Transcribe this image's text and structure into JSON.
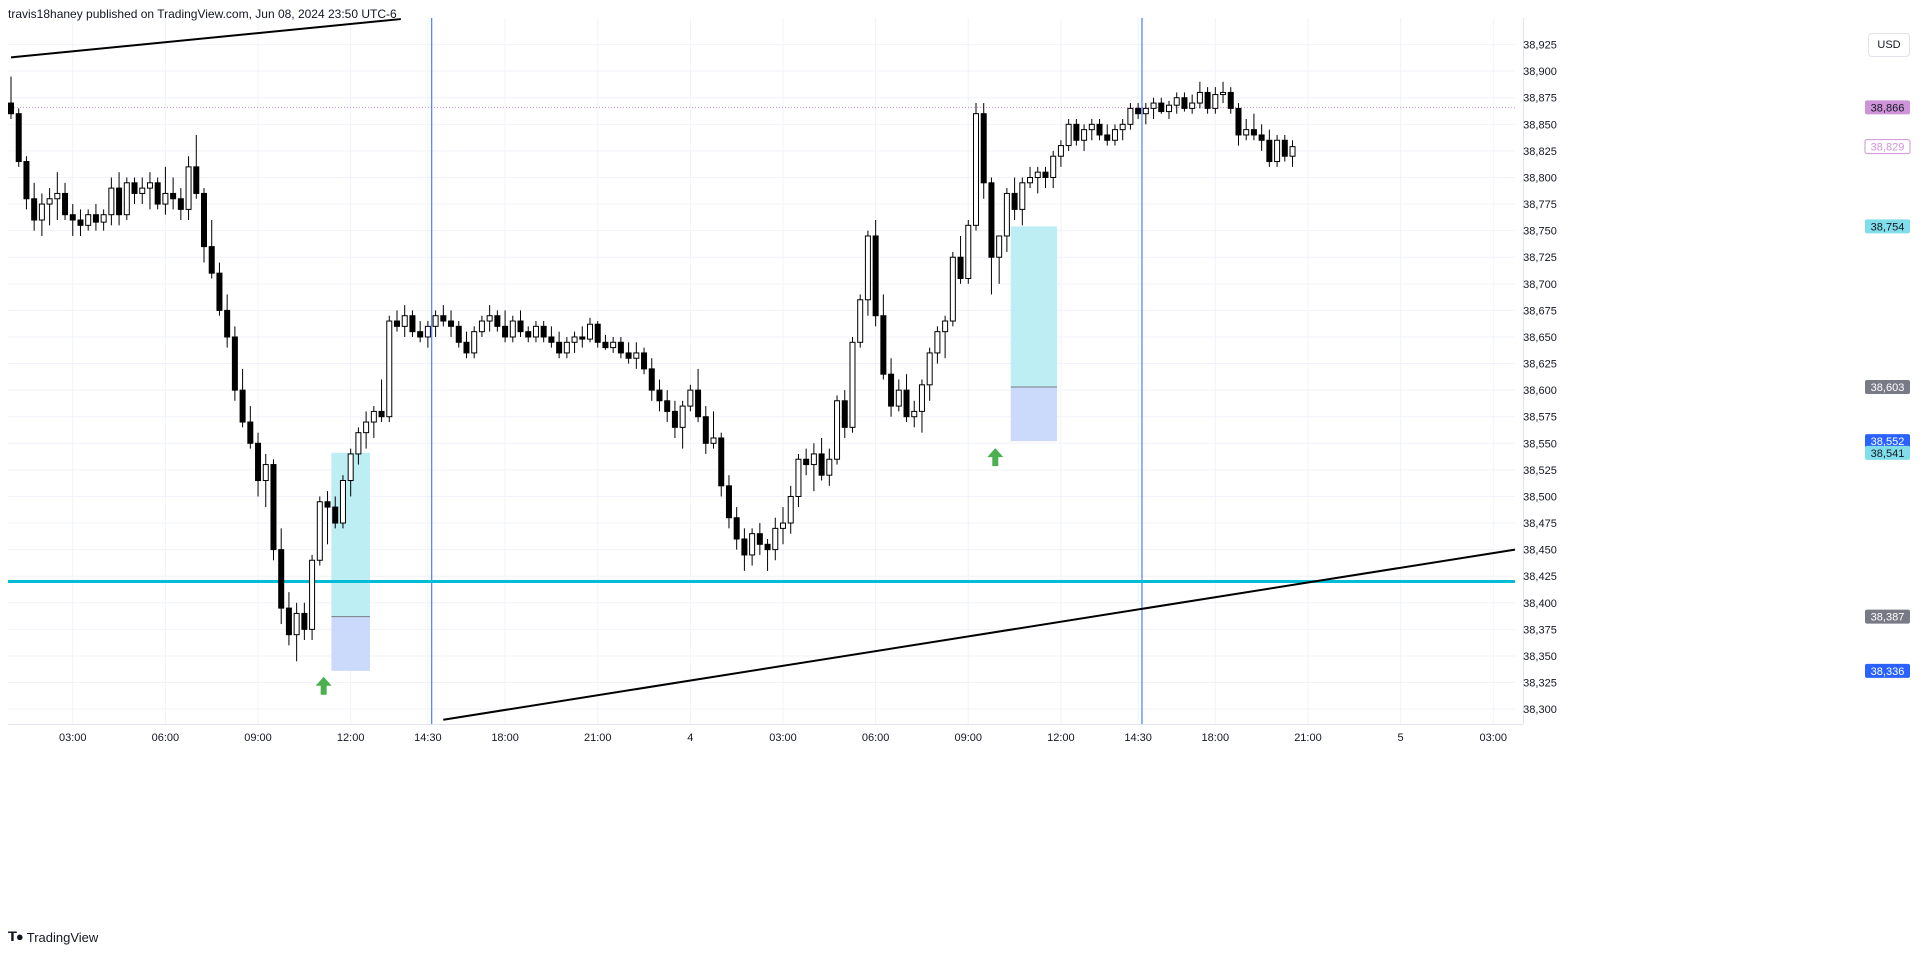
{
  "header": {
    "publish_text": "travis18haney published on TradingView.com, Jun 08, 2024 23:50 UTC-6"
  },
  "footer": {
    "brand": "TradingView",
    "logo_icon": "tradingview-logo-icon"
  },
  "price_scale": {
    "currency": "USD"
  },
  "colors": {
    "up_body": "#ffffff",
    "down_body": "#000000",
    "wick": "#000000",
    "vline": "#2962ff",
    "hline": "#00bcd4",
    "trendline": "#000000",
    "profit_zone": "#b2ebf2",
    "stop_zone": "#c5d6fb",
    "arrow": "#4caf50"
  },
  "chart_data": {
    "type": "candlestick",
    "y_ticks": [
      "38,925",
      "38,900",
      "38,875",
      "38,850",
      "38,825",
      "38,800",
      "38,775",
      "38,750",
      "38,725",
      "38,700",
      "38,675",
      "38,650",
      "38,625",
      "38,600",
      "38,575",
      "38,550",
      "38,525",
      "38,500",
      "38,475",
      "38,450",
      "38,425",
      "38,400",
      "38,375",
      "38,350",
      "38,325",
      "38,300"
    ],
    "ylim": [
      38286,
      38950
    ],
    "x_ticks": [
      {
        "label": "03:00",
        "i": 8
      },
      {
        "label": "06:00",
        "i": 20
      },
      {
        "label": "09:00",
        "i": 32
      },
      {
        "label": "12:00",
        "i": 44
      },
      {
        "label": "14:30",
        "i": 54
      },
      {
        "label": "18:00",
        "i": 64
      },
      {
        "label": "21:00",
        "i": 76
      },
      {
        "label": "4",
        "i": 88
      },
      {
        "label": "03:00",
        "i": 100
      },
      {
        "label": "06:00",
        "i": 112
      },
      {
        "label": "09:00",
        "i": 124
      },
      {
        "label": "12:00",
        "i": 136
      },
      {
        "label": "14:30",
        "i": 146
      },
      {
        "label": "18:00",
        "i": 156
      },
      {
        "label": "21:00",
        "i": 168
      },
      {
        "label": "5",
        "i": 180
      },
      {
        "label": "03:00",
        "i": 192
      }
    ],
    "price_labels": [
      {
        "value": 38866,
        "text": "38,866",
        "bg": "#ce93d8",
        "fg": "#131722"
      },
      {
        "value": 38829,
        "text": "38,829",
        "bg": "#ffffff",
        "fg": "#ce93d8",
        "border": "#ce93d8"
      },
      {
        "value": 38754,
        "text": "38,754",
        "bg": "#80deea",
        "fg": "#131722"
      },
      {
        "value": 38603,
        "text": "38,603",
        "bg": "#787b86",
        "fg": "#ffffff"
      },
      {
        "value": 38552,
        "text": "38,552",
        "bg": "#2962ff",
        "fg": "#ffffff"
      },
      {
        "value": 38541,
        "text": "38,541",
        "bg": "#80deea",
        "fg": "#131722"
      },
      {
        "value": 38387,
        "text": "38,387",
        "bg": "#787b86",
        "fg": "#ffffff"
      },
      {
        "value": 38336,
        "text": "38,336",
        "bg": "#2962ff",
        "fg": "#ffffff"
      }
    ],
    "dotted_line": 38866,
    "horizontal_line": 38420,
    "vertical_lines_i": [
      54.5,
      146.5
    ],
    "trendlines": [
      {
        "i1": 0,
        "p1": 38913,
        "i2": 50.5,
        "p2": 38949
      },
      {
        "i1": 56,
        "p1": 38290,
        "i2": 198,
        "p2": 38450
      }
    ],
    "positions": [
      {
        "i1": 41.5,
        "i2": 46.5,
        "entry": 38387,
        "target": 38541,
        "stop": 38336
      },
      {
        "i1": 129.5,
        "i2": 135.5,
        "entry": 38603,
        "target": 38754,
        "stop": 38552
      }
    ],
    "arrows_i": [
      {
        "i": 40.5,
        "price": 38322
      },
      {
        "i": 127.5,
        "price": 38537
      }
    ],
    "candles": [
      [
        38870,
        38895,
        38855,
        38860
      ],
      [
        38860,
        38865,
        38810,
        38815
      ],
      [
        38815,
        38820,
        38770,
        38780
      ],
      [
        38780,
        38795,
        38750,
        38760
      ],
      [
        38760,
        38785,
        38745,
        38775
      ],
      [
        38775,
        38790,
        38755,
        38780
      ],
      [
        38780,
        38805,
        38760,
        38785
      ],
      [
        38785,
        38795,
        38760,
        38765
      ],
      [
        38765,
        38775,
        38745,
        38760
      ],
      [
        38760,
        38770,
        38745,
        38755
      ],
      [
        38755,
        38770,
        38750,
        38765
      ],
      [
        38765,
        38775,
        38750,
        38758
      ],
      [
        38758,
        38770,
        38750,
        38765
      ],
      [
        38765,
        38800,
        38755,
        38790
      ],
      [
        38790,
        38805,
        38755,
        38765
      ],
      [
        38765,
        38800,
        38760,
        38795
      ],
      [
        38795,
        38800,
        38775,
        38785
      ],
      [
        38785,
        38800,
        38775,
        38790
      ],
      [
        38790,
        38805,
        38770,
        38795
      ],
      [
        38795,
        38800,
        38770,
        38775
      ],
      [
        38775,
        38810,
        38765,
        38785
      ],
      [
        38785,
        38800,
        38770,
        38780
      ],
      [
        38780,
        38790,
        38760,
        38770
      ],
      [
        38770,
        38820,
        38760,
        38810
      ],
      [
        38810,
        38840,
        38780,
        38785
      ],
      [
        38785,
        38790,
        38720,
        38735
      ],
      [
        38735,
        38760,
        38705,
        38710
      ],
      [
        38710,
        38720,
        38670,
        38675
      ],
      [
        38675,
        38690,
        38640,
        38650
      ],
      [
        38650,
        38660,
        38590,
        38600
      ],
      [
        38600,
        38620,
        38565,
        38570
      ],
      [
        38570,
        38585,
        38545,
        38550
      ],
      [
        38550,
        38560,
        38500,
        38515
      ],
      [
        38515,
        38540,
        38490,
        38530
      ],
      [
        38530,
        38535,
        38440,
        38450
      ],
      [
        38450,
        38470,
        38380,
        38395
      ],
      [
        38395,
        38410,
        38360,
        38370
      ],
      [
        38370,
        38400,
        38345,
        38390
      ],
      [
        38390,
        38400,
        38365,
        38375
      ],
      [
        38375,
        38445,
        38365,
        38440
      ],
      [
        38440,
        38500,
        38435,
        38495
      ],
      [
        38495,
        38505,
        38455,
        38490
      ],
      [
        38490,
        38500,
        38470,
        38475
      ],
      [
        38475,
        38520,
        38470,
        38515
      ],
      [
        38515,
        38545,
        38500,
        38540
      ],
      [
        38540,
        38565,
        38530,
        38560
      ],
      [
        38560,
        38580,
        38545,
        38570
      ],
      [
        38570,
        38585,
        38555,
        38580
      ],
      [
        38580,
        38610,
        38570,
        38575
      ],
      [
        38575,
        38670,
        38570,
        38665
      ],
      [
        38665,
        38675,
        38655,
        38660
      ],
      [
        38660,
        38680,
        38650,
        38670
      ],
      [
        38670,
        38675,
        38650,
        38655
      ],
      [
        38655,
        38665,
        38645,
        38650
      ],
      [
        38650,
        38665,
        38640,
        38660
      ],
      [
        38660,
        38675,
        38650,
        38670
      ],
      [
        38670,
        38680,
        38660,
        38665
      ],
      [
        38665,
        38675,
        38650,
        38660
      ],
      [
        38660,
        38665,
        38640,
        38645
      ],
      [
        38645,
        38655,
        38630,
        38635
      ],
      [
        38635,
        38660,
        38630,
        38655
      ],
      [
        38655,
        38670,
        38650,
        38665
      ],
      [
        38665,
        38680,
        38655,
        38670
      ],
      [
        38670,
        38675,
        38655,
        38660
      ],
      [
        38660,
        38675,
        38645,
        38650
      ],
      [
        38650,
        38670,
        38645,
        38665
      ],
      [
        38665,
        38675,
        38650,
        38655
      ],
      [
        38655,
        38660,
        38645,
        38650
      ],
      [
        38650,
        38665,
        38645,
        38660
      ],
      [
        38660,
        38665,
        38645,
        38650
      ],
      [
        38650,
        38660,
        38640,
        38645
      ],
      [
        38645,
        38655,
        38630,
        38635
      ],
      [
        38635,
        38650,
        38630,
        38645
      ],
      [
        38645,
        38655,
        38635,
        38650
      ],
      [
        38650,
        38660,
        38640,
        38648
      ],
      [
        38648,
        38668,
        38645,
        38662
      ],
      [
        38662,
        38665,
        38640,
        38645
      ],
      [
        38645,
        38652,
        38638,
        38640
      ],
      [
        38640,
        38650,
        38635,
        38645
      ],
      [
        38645,
        38650,
        38630,
        38635
      ],
      [
        38635,
        38645,
        38625,
        38630
      ],
      [
        38630,
        38645,
        38620,
        38635
      ],
      [
        38635,
        38640,
        38615,
        38620
      ],
      [
        38620,
        38630,
        38590,
        38600
      ],
      [
        38600,
        38610,
        38580,
        38590
      ],
      [
        38590,
        38600,
        38570,
        38580
      ],
      [
        38580,
        38590,
        38555,
        38565
      ],
      [
        38565,
        38590,
        38545,
        38585
      ],
      [
        38585,
        38605,
        38580,
        38600
      ],
      [
        38600,
        38620,
        38570,
        38575
      ],
      [
        38575,
        38585,
        38540,
        38550
      ],
      [
        38550,
        38580,
        38545,
        38555
      ],
      [
        38555,
        38560,
        38500,
        38510
      ],
      [
        38510,
        38520,
        38470,
        38480
      ],
      [
        38480,
        38490,
        38450,
        38460
      ],
      [
        38460,
        38470,
        38430,
        38445
      ],
      [
        38445,
        38470,
        38435,
        38465
      ],
      [
        38465,
        38475,
        38445,
        38455
      ],
      [
        38455,
        38460,
        38430,
        38450
      ],
      [
        38450,
        38480,
        38440,
        38470
      ],
      [
        38470,
        38490,
        38455,
        38475
      ],
      [
        38475,
        38510,
        38465,
        38500
      ],
      [
        38500,
        38540,
        38490,
        38535
      ],
      [
        38535,
        38545,
        38520,
        38530
      ],
      [
        38530,
        38550,
        38505,
        38540
      ],
      [
        38540,
        38555,
        38515,
        38520
      ],
      [
        38520,
        38545,
        38510,
        38535
      ],
      [
        38535,
        38595,
        38530,
        38590
      ],
      [
        38590,
        38600,
        38555,
        38565
      ],
      [
        38565,
        38650,
        38560,
        38645
      ],
      [
        38645,
        38690,
        38640,
        38685
      ],
      [
        38685,
        38750,
        38670,
        38745
      ],
      [
        38745,
        38760,
        38660,
        38670
      ],
      [
        38670,
        38690,
        38610,
        38615
      ],
      [
        38615,
        38630,
        38575,
        38585
      ],
      [
        38585,
        38610,
        38580,
        38600
      ],
      [
        38600,
        38615,
        38570,
        38575
      ],
      [
        38575,
        38590,
        38565,
        38580
      ],
      [
        38580,
        38610,
        38560,
        38605
      ],
      [
        38605,
        38640,
        38590,
        38635
      ],
      [
        38635,
        38660,
        38625,
        38655
      ],
      [
        38655,
        38670,
        38630,
        38665
      ],
      [
        38665,
        38730,
        38660,
        38725
      ],
      [
        38725,
        38745,
        38700,
        38705
      ],
      [
        38705,
        38760,
        38700,
        38755
      ],
      [
        38755,
        38870,
        38750,
        38860
      ],
      [
        38860,
        38870,
        38780,
        38795
      ],
      [
        38795,
        38800,
        38690,
        38725
      ],
      [
        38725,
        38740,
        38700,
        38745
      ],
      [
        38745,
        38790,
        38730,
        38785
      ],
      [
        38785,
        38800,
        38760,
        38770
      ],
      [
        38770,
        38800,
        38755,
        38795
      ],
      [
        38795,
        38810,
        38790,
        38800
      ],
      [
        38800,
        38810,
        38785,
        38805
      ],
      [
        38805,
        38810,
        38790,
        38800
      ],
      [
        38800,
        38825,
        38790,
        38820
      ],
      [
        38820,
        38835,
        38810,
        38830
      ],
      [
        38830,
        38855,
        38825,
        38850
      ],
      [
        38850,
        38855,
        38830,
        38835
      ],
      [
        38835,
        38850,
        38825,
        38845
      ],
      [
        38845,
        38855,
        38835,
        38850
      ],
      [
        38850,
        38855,
        38835,
        38840
      ],
      [
        38840,
        38850,
        38830,
        38835
      ],
      [
        38835,
        38850,
        38830,
        38845
      ],
      [
        38845,
        38855,
        38835,
        38850
      ],
      [
        38850,
        38870,
        38845,
        38865
      ],
      [
        38865,
        38870,
        38855,
        38860
      ],
      [
        38860,
        38870,
        38850,
        38865
      ],
      [
        38865,
        38875,
        38855,
        38870
      ],
      [
        38870,
        38875,
        38860,
        38862
      ],
      [
        38862,
        38872,
        38855,
        38868
      ],
      [
        38868,
        38880,
        38860,
        38875
      ],
      [
        38875,
        38880,
        38862,
        38865
      ],
      [
        38865,
        38878,
        38860,
        38870
      ],
      [
        38870,
        38890,
        38865,
        38880
      ],
      [
        38880,
        38885,
        38860,
        38865
      ],
      [
        38865,
        38885,
        38860,
        38878
      ],
      [
        38878,
        38890,
        38870,
        38880
      ],
      [
        38880,
        38885,
        38860,
        38865
      ],
      [
        38865,
        38870,
        38830,
        38840
      ],
      [
        38840,
        38855,
        38835,
        38845
      ],
      [
        38845,
        38860,
        38835,
        38840
      ],
      [
        38840,
        38850,
        38825,
        38835
      ],
      [
        38835,
        38845,
        38810,
        38815
      ],
      [
        38815,
        38840,
        38810,
        38835
      ],
      [
        38835,
        38840,
        38815,
        38820
      ],
      [
        38820,
        38835,
        38810,
        38829
      ]
    ]
  }
}
